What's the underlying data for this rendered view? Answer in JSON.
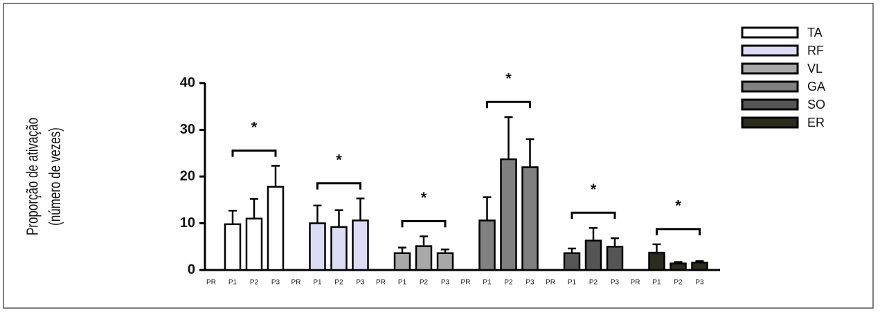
{
  "chart_data": {
    "type": "bar",
    "ylabel": [
      "Proporção de ativação",
      "(número de vezes)"
    ],
    "categories": [
      "PR",
      "P1",
      "P2",
      "P3"
    ],
    "ylim": [
      0,
      40
    ],
    "yticks": [
      0,
      10,
      20,
      30,
      40
    ],
    "significance": "*",
    "series": [
      {
        "name": "TA",
        "color": "#ffffff",
        "values": [
          0,
          9.8,
          11,
          17.8
        ],
        "errors": [
          0,
          2.9,
          4.2,
          4.5
        ]
      },
      {
        "name": "RF",
        "color": "#dcdcf5",
        "values": [
          0,
          10,
          9.2,
          10.6
        ],
        "errors": [
          0,
          3.8,
          3.6,
          4.7
        ]
      },
      {
        "name": "VL",
        "color": "#a8a8a8",
        "values": [
          0,
          3.6,
          5.1,
          3.6
        ],
        "errors": [
          0,
          1.2,
          2.1,
          0.8
        ]
      },
      {
        "name": "GA",
        "color": "#808080",
        "values": [
          0,
          10.6,
          23.7,
          22
        ],
        "errors": [
          0,
          5,
          9,
          6
        ]
      },
      {
        "name": "SO",
        "color": "#555555",
        "values": [
          0,
          3.6,
          6.3,
          5
        ],
        "errors": [
          0,
          1,
          2.7,
          1.8
        ]
      },
      {
        "name": "ER",
        "color": "#2b2b1e",
        "values": [
          0,
          3.7,
          1.4,
          1.6
        ],
        "errors": [
          0,
          1.8,
          0.3,
          0.3
        ]
      }
    ]
  }
}
